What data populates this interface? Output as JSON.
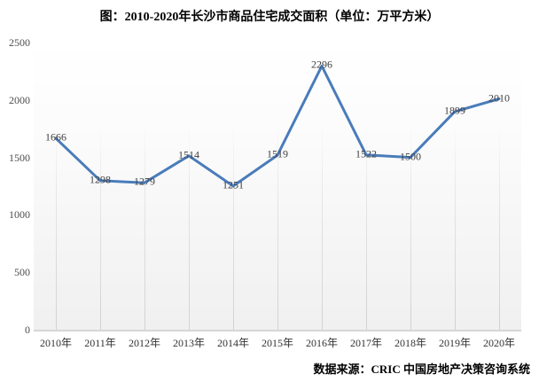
{
  "title": "图：2010-2020年长沙市商品住宅成交面积（单位：万平方米）",
  "source": "数据来源：CRIC 中国房地产决策咨询系统",
  "chart_data": {
    "type": "line",
    "title": "图：2010-2020年长沙市商品住宅成交面积（单位：万平方米）",
    "unit": "万平方米",
    "categories": [
      "2010年",
      "2011年",
      "2012年",
      "2013年",
      "2014年",
      "2015年",
      "2016年",
      "2017年",
      "2018年",
      "2019年",
      "2020年"
    ],
    "values": [
      1666,
      1298,
      1279,
      1514,
      1251,
      1519,
      2296,
      1522,
      1500,
      1899,
      2010
    ],
    "data_labels_shown": true,
    "ylim": [
      0,
      2500
    ],
    "yticks": [
      0,
      500,
      1000,
      1500,
      2000,
      2500
    ],
    "xlabel": "",
    "ylabel": "",
    "legend": "none",
    "grid": "vertical-only",
    "line_color": "#4A7CBA",
    "label_color": "#404040",
    "plot_bg_top": "#ffffff",
    "plot_bg_bottom": "#f0f0f0",
    "gridline_color": "#d2d2d2"
  }
}
